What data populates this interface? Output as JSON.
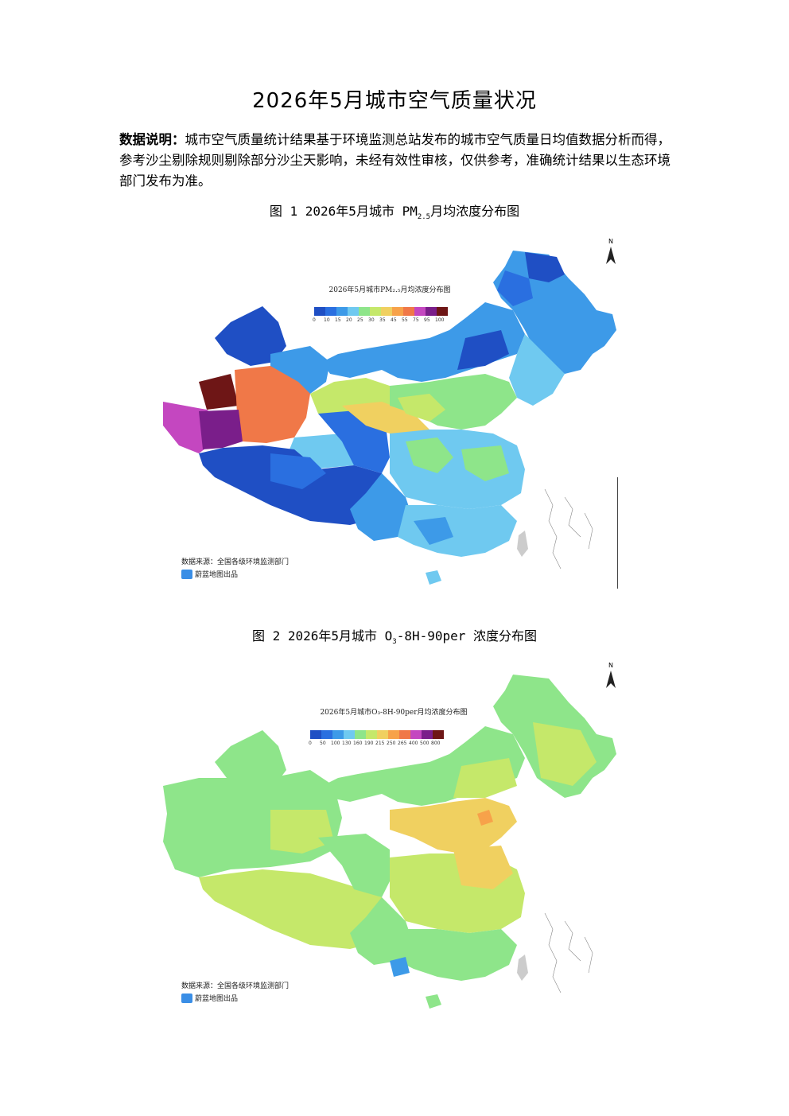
{
  "page": {
    "title": "2026年5月城市空气质量状况",
    "desc_label": "数据说明：",
    "desc_text": "城市空气质量统计结果基于环境监测总站发布的城市空气质量日均值数据分析而得，参考沙尘剔除规则剔除部分沙尘天影响，未经有效性审核，仅供参考，准确统计结果以生态环境部门发布为准。"
  },
  "fig1": {
    "caption_prefix": "图 1 2026年5月城市 PM",
    "caption_sub": "2.5",
    "caption_suffix": "月均浓度分布图",
    "map_title": "2026年5月城市PM₂.₅月均浓度分布图",
    "legend_ticks": [
      "0",
      "10",
      "15",
      "20",
      "25",
      "30",
      "35",
      "45",
      "55",
      "75",
      "95",
      "100"
    ],
    "legend_colors": [
      "#1f4fc4",
      "#2a6fe0",
      "#3d9ae8",
      "#6fc9f0",
      "#8ee58a",
      "#c5e86a",
      "#f0d060",
      "#f7a24a",
      "#f07848",
      "#c447c0",
      "#7a1e8a",
      "#6e1616"
    ],
    "north": "N",
    "source": "数据来源：全国各级环境监测部门",
    "brand": "蔚蓝地图出品"
  },
  "fig2": {
    "caption_prefix": "图 2 2026年5月城市 O",
    "caption_sub": "3",
    "caption_suffix": "-8H-90per 浓度分布图",
    "map_title": "2026年5月城市O₃-8H-90per月均浓度分布图",
    "legend_ticks": [
      "0",
      "50",
      "100",
      "130",
      "160",
      "190",
      "215",
      "250",
      "265",
      "400",
      "500",
      "800"
    ],
    "legend_colors": [
      "#1f4fc4",
      "#2a6fe0",
      "#3d9ae8",
      "#6fc9f0",
      "#8ee58a",
      "#c5e86a",
      "#f0d060",
      "#f7a24a",
      "#f07848",
      "#c447c0",
      "#7a1e8a",
      "#6e1616"
    ],
    "north": "N",
    "source": "数据来源：全国各级环境监测部门",
    "brand": "蔚蓝地图出品"
  }
}
